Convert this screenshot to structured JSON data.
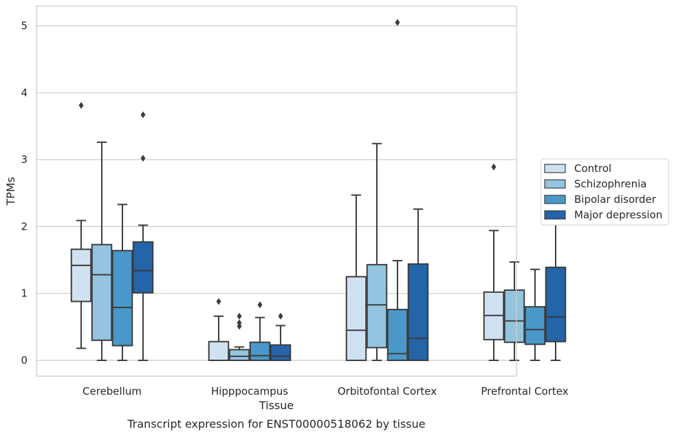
{
  "chart_data": {
    "type": "box",
    "title": "",
    "caption": "Transcript expression for ENST00000518062 by tissue",
    "xlabel": "Tissue",
    "ylabel": "TPMs",
    "ylim": [
      -0.24,
      5.3
    ],
    "yticks": [
      0,
      1,
      2,
      3,
      4,
      5
    ],
    "grid": "horizontal",
    "legend_position": "right",
    "categories": [
      "Cerebellum",
      "Hipppocampus",
      "Orbitofontal Cortex",
      "Prefrontal Cortex"
    ],
    "series": [
      {
        "name": "Control",
        "color": "#d0e1f2",
        "boxes": [
          {
            "whislo": 0.18,
            "q1": 0.88,
            "med": 1.42,
            "q3": 1.66,
            "whishi": 2.09,
            "fliers": [
              3.81
            ]
          },
          {
            "whislo": 0.0,
            "q1": 0.0,
            "med": 0.0,
            "q3": 0.28,
            "whishi": 0.66,
            "fliers": [
              0.88
            ]
          },
          {
            "whislo": 0.0,
            "q1": 0.0,
            "med": 0.45,
            "q3": 1.25,
            "whishi": 2.47,
            "fliers": []
          },
          {
            "whislo": 0.0,
            "q1": 0.31,
            "med": 0.67,
            "q3": 1.02,
            "whishi": 1.94,
            "fliers": [
              2.89
            ]
          }
        ]
      },
      {
        "name": "Schizophrenia",
        "color": "#94c4df",
        "boxes": [
          {
            "whislo": 0.0,
            "q1": 0.3,
            "med": 1.28,
            "q3": 1.73,
            "whishi": 3.26,
            "fliers": []
          },
          {
            "whislo": 0.0,
            "q1": 0.0,
            "med": 0.06,
            "q3": 0.16,
            "whishi": 0.2,
            "fliers": [
              0.51,
              0.56,
              0.66
            ]
          },
          {
            "whislo": 0.0,
            "q1": 0.19,
            "med": 0.83,
            "q3": 1.43,
            "whishi": 3.24,
            "fliers": []
          },
          {
            "whislo": 0.0,
            "q1": 0.27,
            "med": 0.59,
            "q3": 1.05,
            "whishi": 1.47,
            "fliers": []
          }
        ]
      },
      {
        "name": "Bipolar disorder",
        "color": "#4a98c9",
        "boxes": [
          {
            "whislo": 0.0,
            "q1": 0.22,
            "med": 0.79,
            "q3": 1.64,
            "whishi": 2.33,
            "fliers": []
          },
          {
            "whislo": 0.0,
            "q1": 0.0,
            "med": 0.07,
            "q3": 0.27,
            "whishi": 0.64,
            "fliers": [
              0.83
            ]
          },
          {
            "whislo": 0.0,
            "q1": 0.0,
            "med": 0.1,
            "q3": 0.76,
            "whishi": 1.49,
            "fliers": [
              5.05
            ]
          },
          {
            "whislo": 0.0,
            "q1": 0.24,
            "med": 0.46,
            "q3": 0.8,
            "whishi": 1.36,
            "fliers": []
          }
        ]
      },
      {
        "name": "Major depression",
        "color": "#2464a9",
        "boxes": [
          {
            "whislo": 0.0,
            "q1": 1.01,
            "med": 1.34,
            "q3": 1.77,
            "whishi": 2.02,
            "fliers": [
              3.02,
              3.67
            ]
          },
          {
            "whislo": 0.0,
            "q1": 0.0,
            "med": 0.06,
            "q3": 0.23,
            "whishi": 0.52,
            "fliers": [
              0.66
            ]
          },
          {
            "whislo": 0.0,
            "q1": 0.0,
            "med": 0.33,
            "q3": 1.44,
            "whishi": 2.26,
            "fliers": []
          },
          {
            "whislo": 0.0,
            "q1": 0.28,
            "med": 0.65,
            "q3": 1.39,
            "whishi": 2.34,
            "fliers": []
          }
        ]
      }
    ]
  }
}
